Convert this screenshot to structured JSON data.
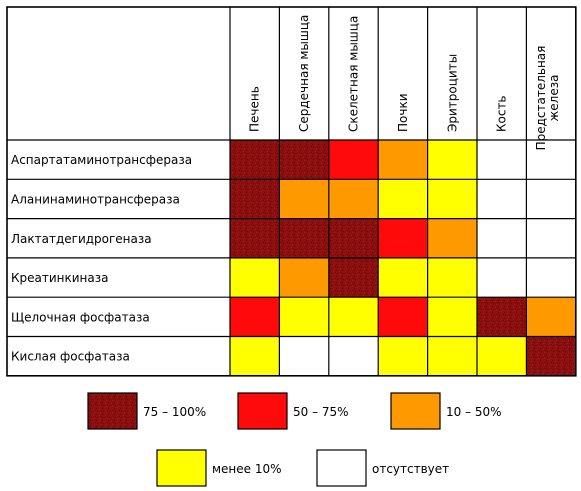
{
  "chart_data": {
    "type": "heatmap",
    "columns": [
      "Печень",
      "Сердечная мышца",
      "Скелетная мышца",
      "Почки",
      "Эритроциты",
      "Кость",
      "Предстательная железа"
    ],
    "rows": [
      {
        "label": "Аспартатаминотрансфераза",
        "levels": [
          "75 – 100%",
          "75 – 100%",
          "50 – 75%",
          "10 – 50%",
          "менее 10%",
          "отсутствует",
          "отсутствует"
        ]
      },
      {
        "label": "Аланинаминотрансфераза",
        "levels": [
          "75 – 100%",
          "10 – 50%",
          "10 – 50%",
          "менее 10%",
          "менее 10%",
          "отсутствует",
          "отсутствует"
        ]
      },
      {
        "label": "Лактатдегидрогеназа",
        "levels": [
          "75 – 100%",
          "75 – 100%",
          "75 – 100%",
          "50 – 75%",
          "10 – 50%",
          "отсутствует",
          "отсутствует"
        ]
      },
      {
        "label": "Креатинкиназа",
        "levels": [
          "менее 10%",
          "10 – 50%",
          "75 – 100%",
          "менее 10%",
          "менее 10%",
          "отсутствует",
          "отсутствует"
        ]
      },
      {
        "label": "Щелочная фосфатаза",
        "levels": [
          "50 – 75%",
          "менее 10%",
          "менее 10%",
          "50 – 75%",
          "менее 10%",
          "75 – 100%",
          "10 – 50%"
        ]
      },
      {
        "label": "Кислая фосфатаза",
        "levels": [
          "менее 10%",
          "отсутствует",
          "отсутствует",
          "менее 10%",
          "менее 10%",
          "менее 10%",
          "75 – 100%"
        ]
      }
    ],
    "legend": [
      {
        "label": "75 – 100%",
        "color": "#8b0f0f",
        "texture": "speckled"
      },
      {
        "label": "50 – 75%",
        "color": "#ff0a0a"
      },
      {
        "label": "10 – 50%",
        "color": "#ff9900"
      },
      {
        "label": "менее 10%",
        "color": "#ffff00"
      },
      {
        "label": "отсутствует",
        "color": "#ffffff"
      }
    ]
  }
}
